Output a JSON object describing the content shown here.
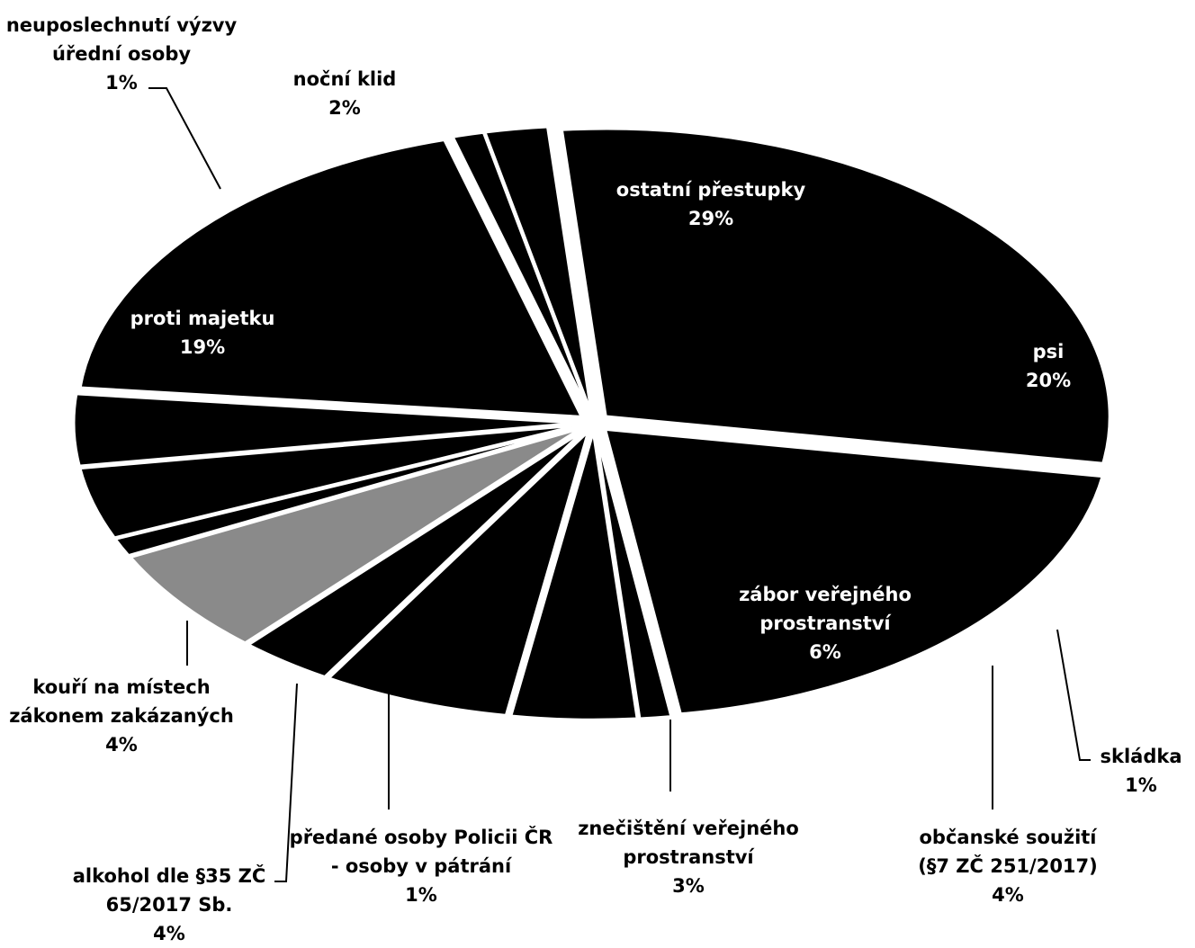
{
  "chart_data": {
    "type": "pie",
    "categories": [
      "ostatní přestupky",
      "psi",
      "skládka",
      "občanské soužití (§7 ZČ 251/2017)",
      "zábor veřejného prostranství",
      "znečištění veřejného prostranství",
      null,
      "předané osoby Policii ČR - osoby v pátrání",
      "alkohol dle §35 ZČ 65/2017 Sb.",
      "kouří na místech zákonem zakázaných",
      "proti majetku",
      "neuposlechnutí výzvy úřední osoby",
      "noční klid"
    ],
    "values": [
      29,
      20,
      1,
      4,
      6,
      3,
      6,
      1,
      4,
      4,
      19,
      1,
      2
    ],
    "value_labels": [
      "29%",
      "20%",
      "1%",
      "4%",
      "6%",
      "3%",
      null,
      "1%",
      "4%",
      "4%",
      "19%",
      "1%",
      "2%"
    ],
    "colors": [
      "#000000",
      "#000000",
      "#000000",
      "#000000",
      "#000000",
      "#000000",
      "#8a8a8a",
      "#000000",
      "#000000",
      "#000000",
      "#000000",
      "#000000",
      "#000000"
    ]
  }
}
